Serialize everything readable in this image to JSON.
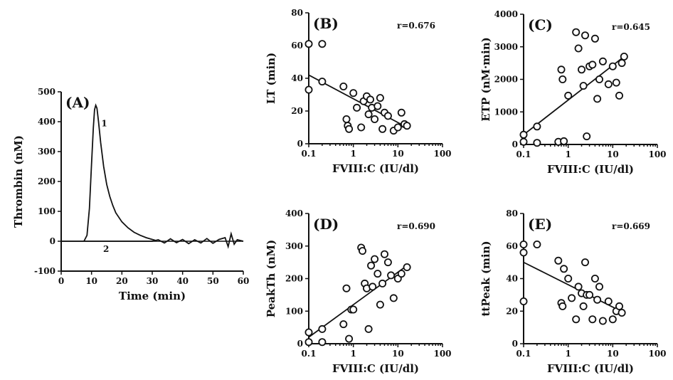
{
  "chart_data": [
    {
      "id": "A",
      "type": "line",
      "panel_label": "(A)",
      "xlabel": "Time (min)",
      "ylabel": "Thrombin (nM)",
      "xlim": [
        0,
        60
      ],
      "ylim": [
        -100,
        500
      ],
      "xticks": [
        0,
        10,
        20,
        30,
        40,
        50,
        60
      ],
      "yticks": [
        -100,
        0,
        100,
        200,
        300,
        400,
        500
      ],
      "series": [
        {
          "name": "1",
          "x": [
            7.5,
            8.5,
            9.3,
            10.0,
            10.6,
            11.0,
            11.4,
            11.8,
            12.3,
            13.0,
            14.0,
            15.0,
            16.0,
            17.0,
            18.0,
            20.0,
            22.0,
            24.0,
            26.0,
            28.0,
            30.0,
            31.0
          ],
          "y": [
            0,
            20,
            110,
            260,
            380,
            440,
            455,
            445,
            400,
            330,
            250,
            190,
            150,
            120,
            95,
            65,
            45,
            30,
            20,
            12,
            6,
            3
          ]
        },
        {
          "name": "2",
          "x": [
            0,
            7.5,
            30,
            32,
            34,
            36,
            38,
            40,
            42,
            44,
            46,
            48,
            50,
            52,
            54,
            55,
            56,
            57,
            58,
            60
          ],
          "y": [
            0,
            0,
            0,
            5,
            -6,
            8,
            -5,
            6,
            -8,
            5,
            -6,
            9,
            -7,
            6,
            12,
            -18,
            25,
            -10,
            5,
            0
          ]
        }
      ]
    },
    {
      "id": "B",
      "type": "scatter",
      "panel_label": "(B)",
      "r_label": "r=0.676",
      "xlabel": "FVIII:C (IU/dl)",
      "ylabel": "LT (min)",
      "xscale": "log",
      "xlim": [
        0.1,
        100
      ],
      "ylim": [
        0,
        80
      ],
      "xticks": [
        0.1,
        1,
        10,
        100
      ],
      "xtick_labels": [
        "0.1",
        "1",
        "10",
        "100"
      ],
      "yticks": [
        0,
        20,
        40,
        60,
        80
      ],
      "fit_line": {
        "x": [
          0.1,
          16
        ],
        "y": [
          42,
          10
        ]
      },
      "x": [
        0.1,
        0.1,
        0.2,
        0.2,
        0.6,
        0.7,
        0.75,
        0.8,
        1.0,
        1.2,
        1.5,
        1.7,
        2.0,
        2.2,
        2.4,
        2.6,
        3.0,
        3.5,
        4.0,
        4.5,
        5.0,
        6.0,
        8.0,
        10.0,
        12.0,
        14.0,
        16.0
      ],
      "y": [
        61,
        33,
        61,
        38,
        35,
        15,
        11,
        9,
        31,
        22,
        10,
        26,
        29,
        18,
        27,
        22,
        15,
        23,
        28,
        9,
        19,
        17,
        8,
        10,
        19,
        12,
        11
      ]
    },
    {
      "id": "C",
      "type": "scatter",
      "panel_label": "(C)",
      "r_label": "r=0.645",
      "xlabel": "FVIII:C (IU/dl)",
      "ylabel": "ETP (nM·min)",
      "xscale": "log",
      "xlim": [
        0.1,
        100
      ],
      "ylim": [
        0,
        4000
      ],
      "xticks": [
        0.1,
        1,
        10,
        100
      ],
      "xtick_labels": [
        "0.1",
        "1",
        "10",
        "100"
      ],
      "yticks": [
        0,
        1000,
        2000,
        3000,
        4000
      ],
      "fit_line": {
        "x": [
          0.1,
          18
        ],
        "y": [
          300,
          2700
        ]
      },
      "x": [
        0.1,
        0.1,
        0.2,
        0.2,
        0.6,
        0.7,
        0.75,
        0.8,
        1.0,
        1.5,
        1.7,
        2.0,
        2.2,
        2.4,
        2.6,
        3.0,
        3.5,
        4.0,
        4.5,
        5.0,
        6.0,
        8.0,
        10.0,
        12.0,
        14.0,
        16.0,
        18.0
      ],
      "y": [
        300,
        80,
        550,
        50,
        80,
        2300,
        2000,
        100,
        1500,
        3450,
        2950,
        2300,
        1800,
        3350,
        250,
        2400,
        2450,
        3250,
        1400,
        2000,
        2550,
        1850,
        2400,
        1900,
        1500,
        2500,
        2700
      ]
    },
    {
      "id": "D",
      "type": "scatter",
      "panel_label": "(D)",
      "r_label": "r=0.690",
      "xlabel": "FVIII:C (IU/dl)",
      "ylabel": "PeakTh (nM)",
      "xscale": "log",
      "xlim": [
        0.1,
        100
      ],
      "ylim": [
        0,
        400
      ],
      "xticks": [
        0.1,
        1,
        10,
        100
      ],
      "xtick_labels": [
        "0.1",
        "1",
        "10",
        "100"
      ],
      "yticks": [
        0,
        100,
        200,
        300,
        400
      ],
      "fit_line": {
        "x": [
          0.1,
          16
        ],
        "y": [
          20,
          240
        ]
      },
      "x": [
        0.1,
        0.1,
        0.2,
        0.2,
        0.6,
        0.7,
        0.8,
        0.9,
        1.0,
        1.5,
        1.6,
        1.8,
        2.0,
        2.2,
        2.5,
        2.7,
        3.0,
        3.5,
        4.0,
        4.5,
        5.0,
        6.0,
        7.0,
        8.0,
        10.0,
        12.0,
        16.0
      ],
      "y": [
        35,
        5,
        45,
        5,
        60,
        170,
        15,
        105,
        105,
        295,
        285,
        185,
        170,
        45,
        240,
        175,
        260,
        215,
        120,
        185,
        275,
        250,
        210,
        140,
        200,
        215,
        235
      ]
    },
    {
      "id": "E",
      "type": "scatter",
      "panel_label": "(E)",
      "r_label": "r=0.669",
      "xlabel": "FVIII:C (IU/dl)",
      "ylabel": "ttPeak (min)",
      "xscale": "log",
      "xlim": [
        0.1,
        100
      ],
      "ylim": [
        0,
        80
      ],
      "xticks": [
        0.1,
        1,
        10,
        100
      ],
      "xtick_labels": [
        "0.1",
        "1",
        "10",
        "100"
      ],
      "yticks": [
        0,
        20,
        40,
        60,
        80
      ],
      "fit_line": {
        "x": [
          0.1,
          18
        ],
        "y": [
          50,
          19
        ]
      },
      "x": [
        0.1,
        0.1,
        0.1,
        0.2,
        0.6,
        0.7,
        0.75,
        0.8,
        1.0,
        1.2,
        1.5,
        1.7,
        2.0,
        2.2,
        2.4,
        2.6,
        3.0,
        3.5,
        4.0,
        4.5,
        5.0,
        6.0,
        8.0,
        10.0,
        12.0,
        14.0,
        16.0
      ],
      "y": [
        61,
        56,
        26,
        61,
        51,
        25,
        23,
        46,
        40,
        28,
        15,
        35,
        31,
        23,
        50,
        30,
        30,
        15,
        40,
        27,
        35,
        14,
        26,
        15,
        20,
        23,
        19
      ]
    }
  ]
}
